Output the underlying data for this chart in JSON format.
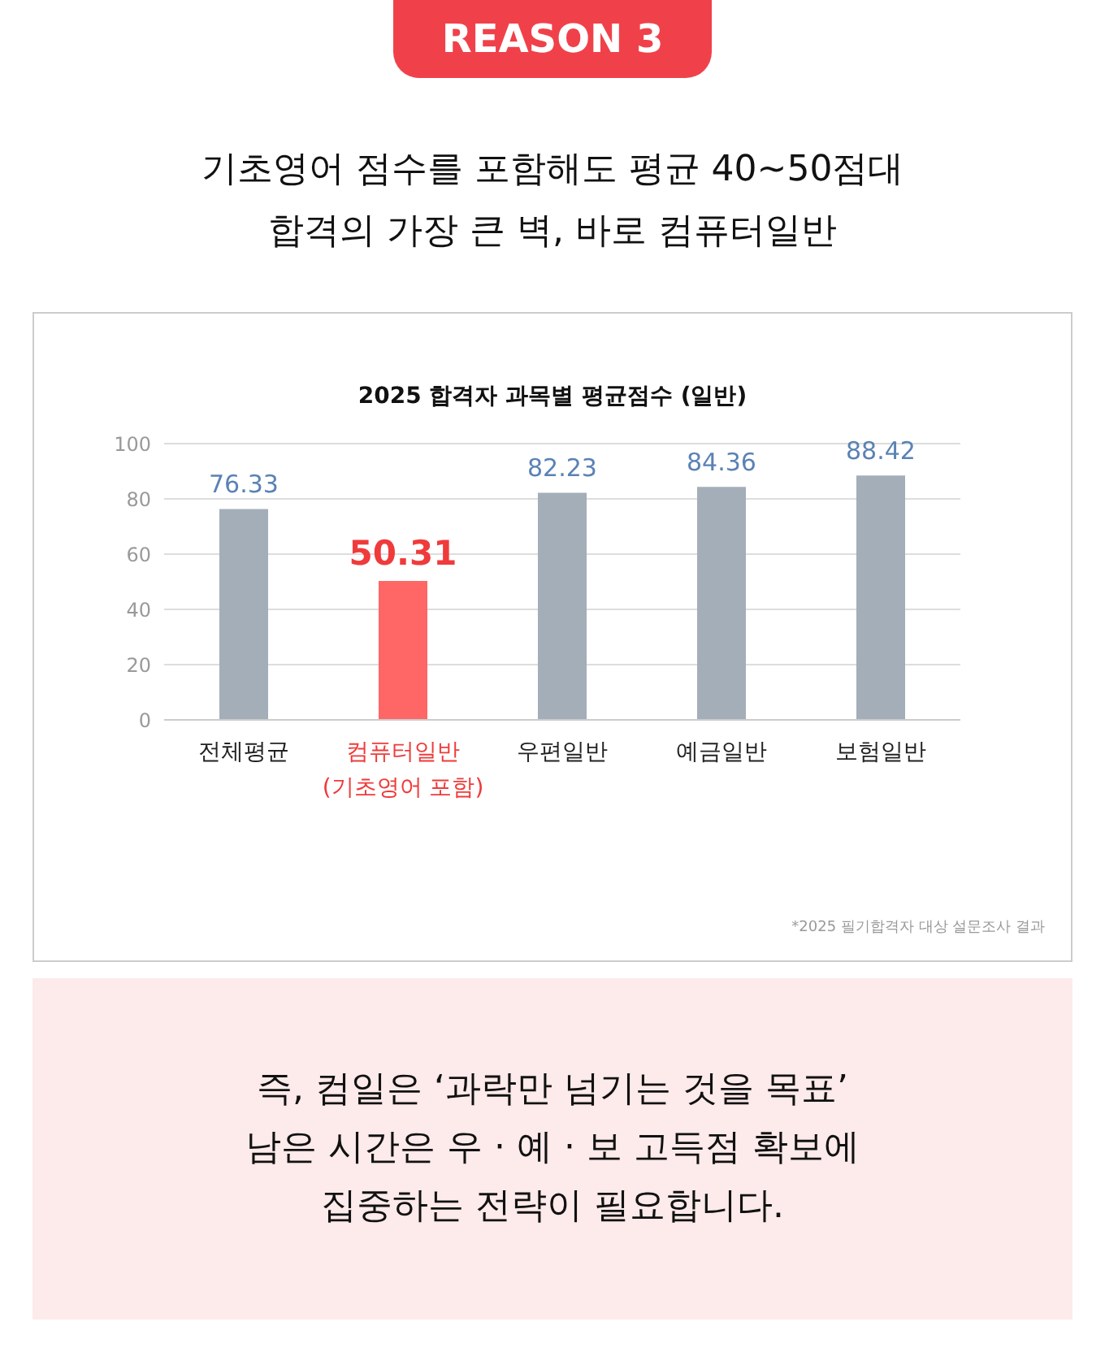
{
  "chart_data": {
    "type": "bar",
    "title": "2025 합격자 과목별 평균점수 (일반)",
    "categories": [
      "전체평균",
      "컴퓨터일반\n(기초영어 포함)",
      "우편일반",
      "예금일반",
      "보험일반"
    ],
    "values": [
      76.33,
      50.31,
      82.23,
      84.36,
      88.42
    ],
    "colors": [
      "#a4aeb9",
      "#ff6666",
      "#a4aeb9",
      "#a4aeb9",
      "#a4aeb9"
    ],
    "ylim": [
      0,
      100
    ],
    "yticks": [
      0,
      20,
      40,
      60,
      80,
      100
    ],
    "grid": "y",
    "data_labels": true,
    "annotations": [
      "REASON 3",
      "기초영어 점수를 포함해도 평균 40~50점대\n합격의 가장 큰 벽, 바로 컴퓨터일반",
      "*2025 필기합격자 대상 설문조사 결과",
      "즉, 컴일은 ‘과락만 넘기는 것을 목표’\n남은 시간은 우 · 예 · 보 고득점 확보에\n집중하는 전략이 필요합니다."
    ]
  }
}
